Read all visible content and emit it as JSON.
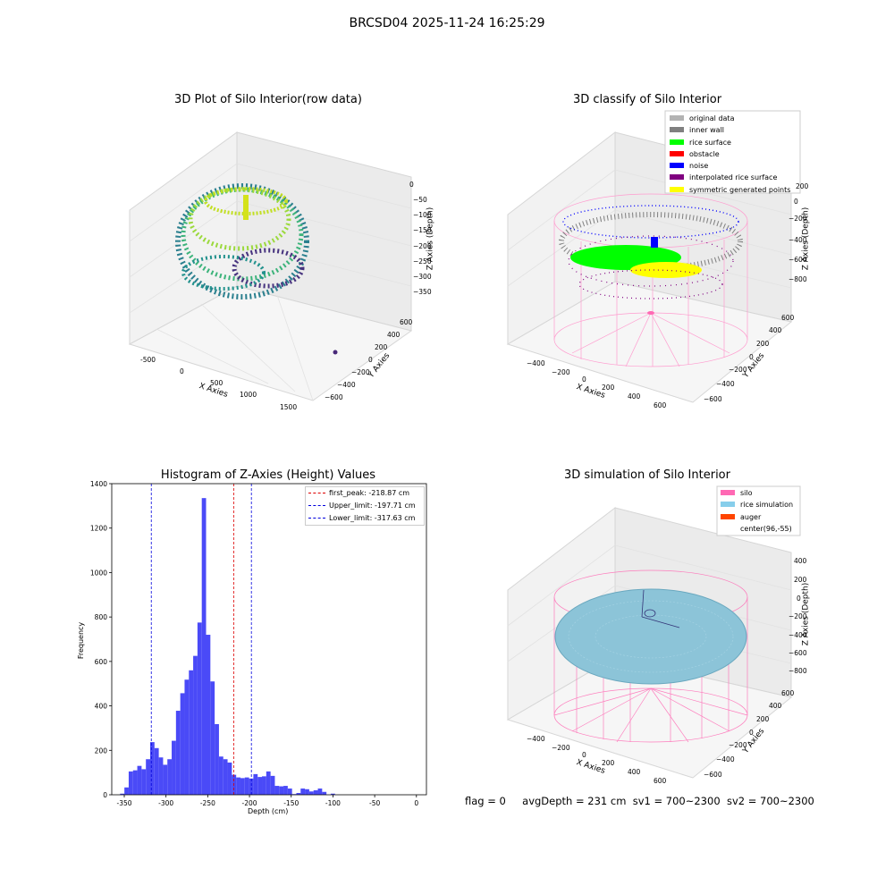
{
  "suptitle": "BRCSD04 2025-11-24 16:25:29",
  "panels": {
    "raw3d": {
      "title": "3D Plot of Silo Interior(row data)",
      "xlabel": "X Axies",
      "ylabel": "Y Axies",
      "zlabel": "Z Axies (Depth)",
      "xticks": [
        "-500",
        "0",
        "500",
        "1000",
        "1500"
      ],
      "yticks": [
        "600",
        "400",
        "200",
        "0",
        "−200",
        "−400",
        "−600"
      ],
      "zticks": [
        "0",
        "−50",
        "−100",
        "−150",
        "−200",
        "−250",
        "−300",
        "−350"
      ],
      "colormap": "viridis"
    },
    "classify3d": {
      "title": "3D classify of Silo Interior",
      "xlabel": "X Axies",
      "ylabel": "Y Axies",
      "zlabel": "Z Axies (Depth)",
      "xticks": [
        "−400",
        "−200",
        "0",
        "200",
        "400",
        "600"
      ],
      "yticks": [
        "600",
        "400",
        "200",
        "0",
        "−200",
        "−400",
        "−600"
      ],
      "zticks": [
        "200",
        "0",
        "−200",
        "−400",
        "−600",
        "−800"
      ],
      "legend": [
        {
          "label": "original data",
          "color": "#b3b3b3"
        },
        {
          "label": "inner wall",
          "color": "#808080"
        },
        {
          "label": "rice surface",
          "color": "#00ff00"
        },
        {
          "label": "obstacle",
          "color": "#ff0000"
        },
        {
          "label": "noise",
          "color": "#0000ff"
        },
        {
          "label": "interpolated rice surface",
          "color": "#800080"
        },
        {
          "label": "symmetric generated points",
          "color": "#ffff00"
        }
      ]
    },
    "simulation3d": {
      "title": "3D simulation of Silo Interior",
      "xlabel": "X Axies",
      "ylabel": "Y Axies",
      "zlabel": "Z Axies (Depth)",
      "xticks": [
        "−400",
        "−200",
        "0",
        "200",
        "400",
        "600"
      ],
      "yticks": [
        "600",
        "400",
        "200",
        "0",
        "−200",
        "−400",
        "−600"
      ],
      "zticks": [
        "400",
        "200",
        "0",
        "−200",
        "−400",
        "−600",
        "−800"
      ],
      "legend": [
        {
          "label": "silo",
          "color": "#ff69b4"
        },
        {
          "label": "rice simulation",
          "color": "#87ceeb"
        },
        {
          "label": "auger",
          "color": "#ff4500"
        },
        {
          "label": "center(96,-55)",
          "color": ""
        }
      ]
    }
  },
  "chart_data": [
    {
      "type": "bar",
      "title": "Histogram of Z-Axies (Height) Values",
      "xlabel": "Depth (cm)",
      "ylabel": "Frequency",
      "xlim": [
        -365,
        12
      ],
      "ylim": [
        0,
        1400
      ],
      "xticks": [
        -350,
        -300,
        -250,
        -200,
        -150,
        -100,
        -50,
        0
      ],
      "yticks": [
        0,
        200,
        400,
        600,
        800,
        1000,
        1200,
        1400
      ],
      "bar_color": "#4a4af7",
      "bin_width": 5.15,
      "bin_start": -355,
      "values": [
        5,
        33,
        105,
        110,
        130,
        115,
        160,
        237,
        210,
        168,
        135,
        160,
        243,
        378,
        457,
        518,
        560,
        625,
        775,
        1335,
        720,
        510,
        318,
        172,
        160,
        145,
        90,
        78,
        75,
        78,
        73,
        93,
        80,
        83,
        105,
        85,
        40,
        38,
        40,
        28,
        3,
        8,
        28,
        25,
        15,
        20,
        28,
        13,
        0,
        5,
        0
      ],
      "vlines": [
        {
          "label": "first_peak: -218.87 cm",
          "x": -218.87,
          "color": "#dd0000"
        },
        {
          "label": "Upper_limit: -197.71 cm",
          "x": -197.71,
          "color": "#0000dd"
        },
        {
          "label": "Lower_limit: -317.63 cm",
          "x": -317.63,
          "color": "#0000dd"
        }
      ],
      "legend_position": "top-right"
    }
  ],
  "footer": {
    "flag": "flag = 0",
    "avg": "avgDepth = 231 cm",
    "sv1": "sv1 = 700~2300",
    "sv2": "sv2 = 700~2300"
  }
}
